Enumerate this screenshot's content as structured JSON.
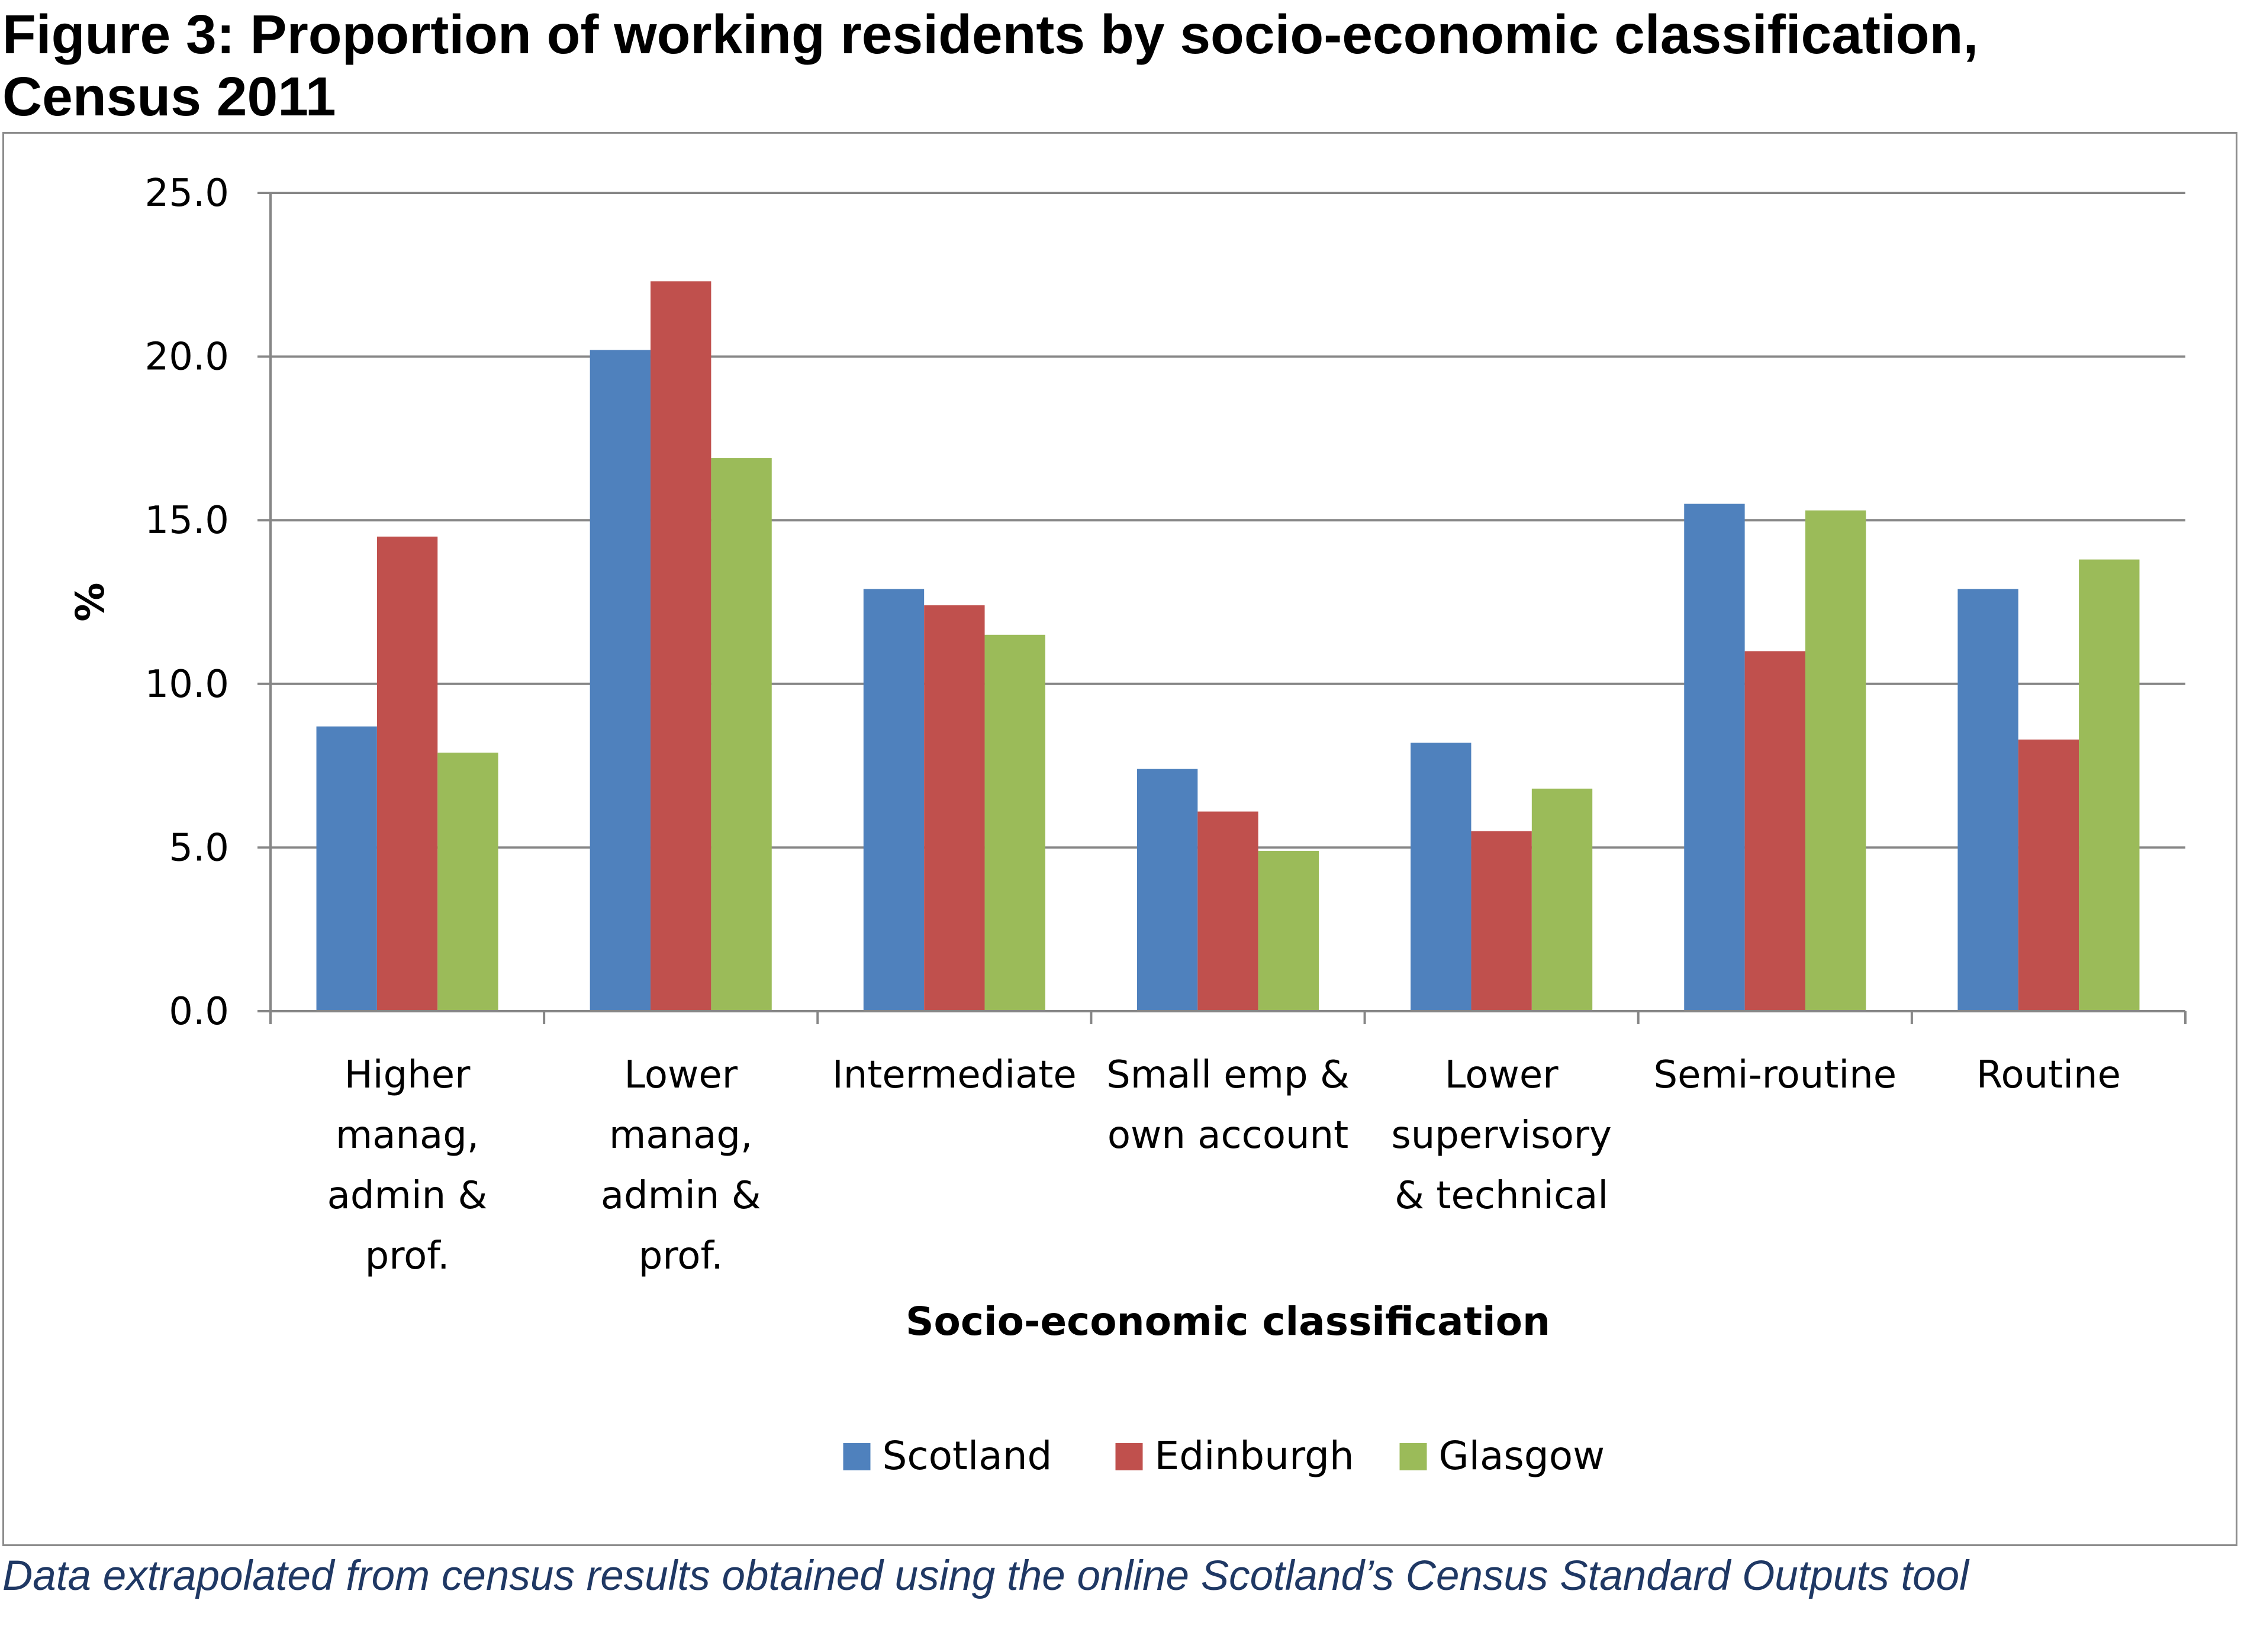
{
  "figure": {
    "title": "Figure 3: Proportion of working residents by socio-economic classification, Census 2011",
    "footnote": "Data extrapolated from census results obtained using the online Scotland’s Census Standard Outputs tool"
  },
  "chart_data": {
    "type": "bar",
    "categories": [
      [
        "Higher",
        "manag,",
        "admin &",
        "prof."
      ],
      [
        "Lower",
        "manag,",
        "admin &",
        "prof."
      ],
      [
        "Intermediate"
      ],
      [
        "Small emp &",
        "own account"
      ],
      [
        "Lower",
        "supervisory",
        "& technical"
      ],
      [
        "Semi-routine"
      ],
      [
        "Routine"
      ]
    ],
    "series": [
      {
        "name": "Scotland",
        "color": "#4f81bd",
        "values": [
          8.7,
          20.2,
          12.9,
          7.4,
          8.2,
          15.5,
          12.9
        ]
      },
      {
        "name": "Edinburgh",
        "color": "#c0504d",
        "values": [
          14.5,
          22.3,
          12.4,
          6.1,
          5.5,
          11.0,
          8.3
        ]
      },
      {
        "name": "Glasgow",
        "color": "#9bbb59",
        "values": [
          7.9,
          16.9,
          11.5,
          4.9,
          6.8,
          15.3,
          13.8
        ]
      }
    ],
    "xlabel": "Socio-economic classification",
    "ylabel": "%",
    "ylim": [
      0,
      25
    ],
    "yticks": [
      "0.0",
      "5.0",
      "10.0",
      "15.0",
      "20.0",
      "25.0"
    ],
    "grid": true,
    "legend_position": "bottom"
  }
}
